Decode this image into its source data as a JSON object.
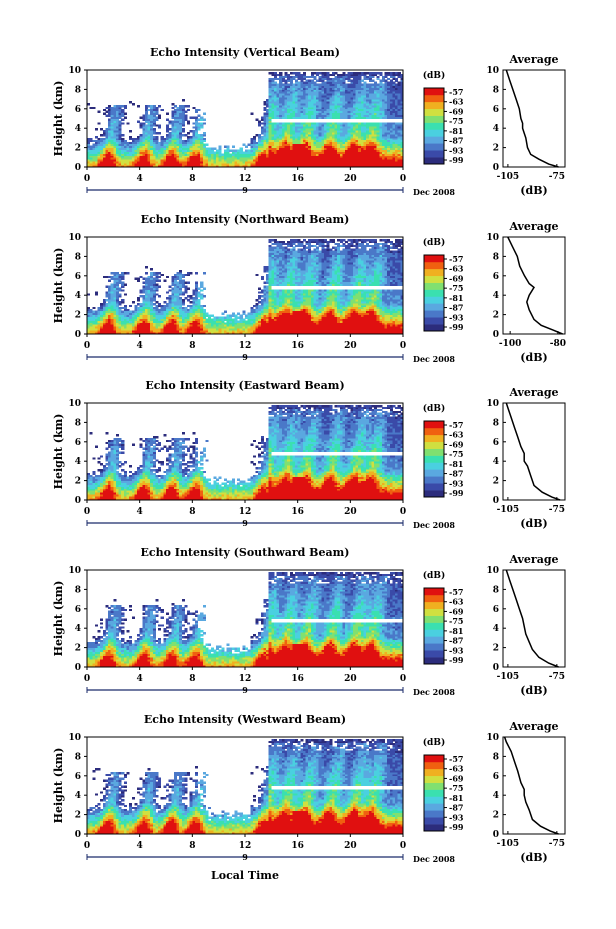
{
  "figure": {
    "bottom_xlabel": "Local Time",
    "x_date_label": "Dec 2008",
    "day_marker": "9",
    "height_ylabel": "Height (km)",
    "colorbar_unit": "(dB)",
    "average_title": "Average",
    "average_xlabel": "(dB)"
  },
  "colors": {
    "colormap": [
      "#2c2c7c",
      "#3a4aa8",
      "#4a78c8",
      "#5aa8e0",
      "#4ad0e0",
      "#3ae0b0",
      "#80e070",
      "#d0e040",
      "#f0b020",
      "#f06010",
      "#e01010"
    ]
  },
  "chart_data": [
    {
      "type": "heatmap",
      "title": "Echo Intensity (Vertical Beam)",
      "xlabel": "",
      "ylabel": "Height (km)",
      "xlim": [
        0,
        24
      ],
      "ylim": [
        0,
        10
      ],
      "x_ticks": [
        "0",
        "4",
        "8",
        "12",
        "16",
        "20",
        "0"
      ],
      "y_ticks": [
        "0",
        "2",
        "4",
        "6",
        "8",
        "10"
      ],
      "colorbar_ticks": [
        "-57",
        "-63",
        "-69",
        "-75",
        "-81",
        "-87",
        "-93",
        "-99"
      ],
      "average": {
        "xticks": [
          "-105",
          "-75"
        ],
        "xlim": [
          -108,
          -70
        ],
        "profile": [
          [
            -74,
            0
          ],
          [
            -80,
            0.3
          ],
          [
            -86,
            0.8
          ],
          [
            -91,
            1.3
          ],
          [
            -93,
            2
          ],
          [
            -94,
            3
          ],
          [
            -95,
            3.5
          ],
          [
            -96,
            4
          ],
          [
            -96,
            4.5
          ],
          [
            -97,
            5
          ],
          [
            -98,
            6
          ],
          [
            -100,
            7
          ],
          [
            -102,
            8
          ],
          [
            -104,
            9
          ],
          [
            -106,
            10
          ]
        ]
      }
    },
    {
      "type": "heatmap",
      "title": "Echo Intensity (Northward Beam)",
      "xlabel": "",
      "ylabel": "Height (km)",
      "xlim": [
        0,
        24
      ],
      "ylim": [
        0,
        10
      ],
      "x_ticks": [
        "0",
        "4",
        "8",
        "12",
        "16",
        "20",
        "0"
      ],
      "y_ticks": [
        "0",
        "2",
        "4",
        "6",
        "8",
        "10"
      ],
      "colorbar_ticks": [
        "-57",
        "-63",
        "-69",
        "-75",
        "-81",
        "-87",
        "-93",
        "-99"
      ],
      "average": {
        "xticks": [
          "-100",
          "-80"
        ],
        "xlim": [
          -103,
          -77
        ],
        "profile": [
          [
            -78,
            0
          ],
          [
            -82,
            0.4
          ],
          [
            -87,
            0.9
          ],
          [
            -90,
            1.5
          ],
          [
            -92,
            2.5
          ],
          [
            -93,
            3.3
          ],
          [
            -92,
            4
          ],
          [
            -90,
            4.8
          ],
          [
            -92,
            5.2
          ],
          [
            -94,
            6
          ],
          [
            -96,
            7
          ],
          [
            -97,
            8
          ],
          [
            -99,
            9
          ],
          [
            -101,
            10
          ]
        ]
      }
    },
    {
      "type": "heatmap",
      "title": "Echo Intensity (Eastward Beam)",
      "xlabel": "",
      "ylabel": "Height (km)",
      "xlim": [
        0,
        24
      ],
      "ylim": [
        0,
        10
      ],
      "x_ticks": [
        "0",
        "4",
        "8",
        "12",
        "16",
        "20",
        "0"
      ],
      "y_ticks": [
        "0",
        "2",
        "4",
        "6",
        "8",
        "10"
      ],
      "colorbar_ticks": [
        "-57",
        "-63",
        "-69",
        "-75",
        "-81",
        "-87",
        "-93",
        "-99"
      ],
      "average": {
        "xticks": [
          "-105",
          "-75"
        ],
        "xlim": [
          -108,
          -70
        ],
        "profile": [
          [
            -73,
            0
          ],
          [
            -78,
            0.3
          ],
          [
            -84,
            0.8
          ],
          [
            -89,
            1.5
          ],
          [
            -91,
            2.5
          ],
          [
            -93,
            3.5
          ],
          [
            -95,
            4
          ],
          [
            -95,
            4.8
          ],
          [
            -97,
            5.5
          ],
          [
            -99,
            6.5
          ],
          [
            -101,
            7.5
          ],
          [
            -103,
            8.5
          ],
          [
            -105,
            9.5
          ],
          [
            -106,
            10
          ]
        ]
      }
    },
    {
      "type": "heatmap",
      "title": "Echo Intensity (Southward Beam)",
      "xlabel": "",
      "ylabel": "Height (km)",
      "xlim": [
        0,
        24
      ],
      "ylim": [
        0,
        10
      ],
      "x_ticks": [
        "0",
        "4",
        "8",
        "12",
        "16",
        "20",
        "0"
      ],
      "y_ticks": [
        "0",
        "2",
        "4",
        "6",
        "8",
        "10"
      ],
      "colorbar_ticks": [
        "-57",
        "-63",
        "-69",
        "-75",
        "-81",
        "-87",
        "-93",
        "-99"
      ],
      "average": {
        "xticks": [
          "-105",
          "-75"
        ],
        "xlim": [
          -108,
          -70
        ],
        "profile": [
          [
            -74,
            0
          ],
          [
            -80,
            0.4
          ],
          [
            -86,
            1
          ],
          [
            -90,
            1.8
          ],
          [
            -92,
            2.6
          ],
          [
            -94,
            3.4
          ],
          [
            -95,
            4.2
          ],
          [
            -96,
            5
          ],
          [
            -98,
            6
          ],
          [
            -100,
            7
          ],
          [
            -102,
            8
          ],
          [
            -104,
            9
          ],
          [
            -106,
            10
          ]
        ]
      }
    },
    {
      "type": "heatmap",
      "title": "Echo Intensity (Westward Beam)",
      "xlabel": "",
      "ylabel": "Height (km)",
      "xlim": [
        0,
        24
      ],
      "ylim": [
        0,
        10
      ],
      "x_ticks": [
        "0",
        "4",
        "8",
        "12",
        "16",
        "20",
        "0"
      ],
      "y_ticks": [
        "0",
        "2",
        "4",
        "6",
        "8",
        "10"
      ],
      "colorbar_ticks": [
        "-57",
        "-63",
        "-69",
        "-75",
        "-81",
        "-87",
        "-93",
        "-99"
      ],
      "average": {
        "xticks": [
          "-105",
          "-75"
        ],
        "xlim": [
          -108,
          -70
        ],
        "profile": [
          [
            -74,
            0
          ],
          [
            -79,
            0.3
          ],
          [
            -85,
            0.8
          ],
          [
            -90,
            1.5
          ],
          [
            -92,
            2.5
          ],
          [
            -94,
            3.3
          ],
          [
            -95,
            4
          ],
          [
            -95,
            4.6
          ],
          [
            -97,
            5.3
          ],
          [
            -99,
            6.5
          ],
          [
            -101,
            7.5
          ],
          [
            -103,
            8.5
          ],
          [
            -106,
            9.5
          ],
          [
            -107,
            10
          ]
        ]
      }
    }
  ]
}
